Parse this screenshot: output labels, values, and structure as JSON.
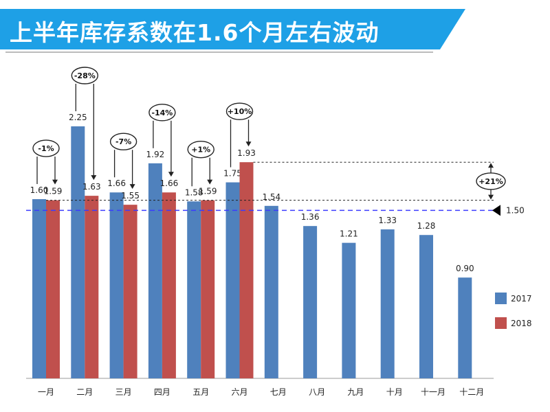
{
  "banner": {
    "title": "上半年库存系数在1.6个月左右波动",
    "color": "#1ea0e6"
  },
  "chart_data": {
    "type": "bar",
    "title": "",
    "xlabel": "",
    "ylabel": "",
    "ylim": [
      0,
      2.5
    ],
    "grid": false,
    "legend_position": "bottom-right",
    "categories": [
      "一月",
      "二月",
      "三月",
      "四月",
      "五月",
      "六月",
      "七月",
      "八月",
      "九月",
      "十月",
      "十一月",
      "十二月"
    ],
    "series": [
      {
        "name": "2017",
        "color": "#4f81bd",
        "values": [
          1.6,
          2.25,
          1.66,
          1.92,
          1.58,
          1.75,
          1.54,
          1.36,
          1.21,
          1.33,
          1.28,
          0.9
        ],
        "labels": [
          "1.60",
          "2.25",
          "1.66",
          "1.92",
          "1.58",
          "1.75",
          "1.54",
          "1.36",
          "1.21",
          "1.33",
          "1.28",
          "0.90"
        ]
      },
      {
        "name": "2018",
        "color": "#c0504d",
        "values": [
          1.59,
          1.63,
          1.55,
          1.66,
          1.59,
          1.93,
          null,
          null,
          null,
          null,
          null,
          null
        ],
        "labels": [
          "1.59",
          "1.63",
          "1.55",
          "1.66",
          "1.59",
          "1.93",
          "",
          "",
          "",
          "",
          "",
          ""
        ]
      }
    ],
    "change_annotations": [
      {
        "category": "一月",
        "label": "-1%"
      },
      {
        "category": "二月",
        "label": "-28%"
      },
      {
        "category": "三月",
        "label": "-7%"
      },
      {
        "category": "四月",
        "label": "-14%"
      },
      {
        "category": "五月",
        "label": "+1%"
      },
      {
        "category": "六月",
        "label": "+10%"
      }
    ],
    "reference_line": {
      "value": 1.5,
      "label": "1.50",
      "color": "#3b3bff"
    },
    "comparison_bracket": {
      "label": "+21%",
      "from_value": 1.59,
      "to_value": 1.93
    }
  }
}
